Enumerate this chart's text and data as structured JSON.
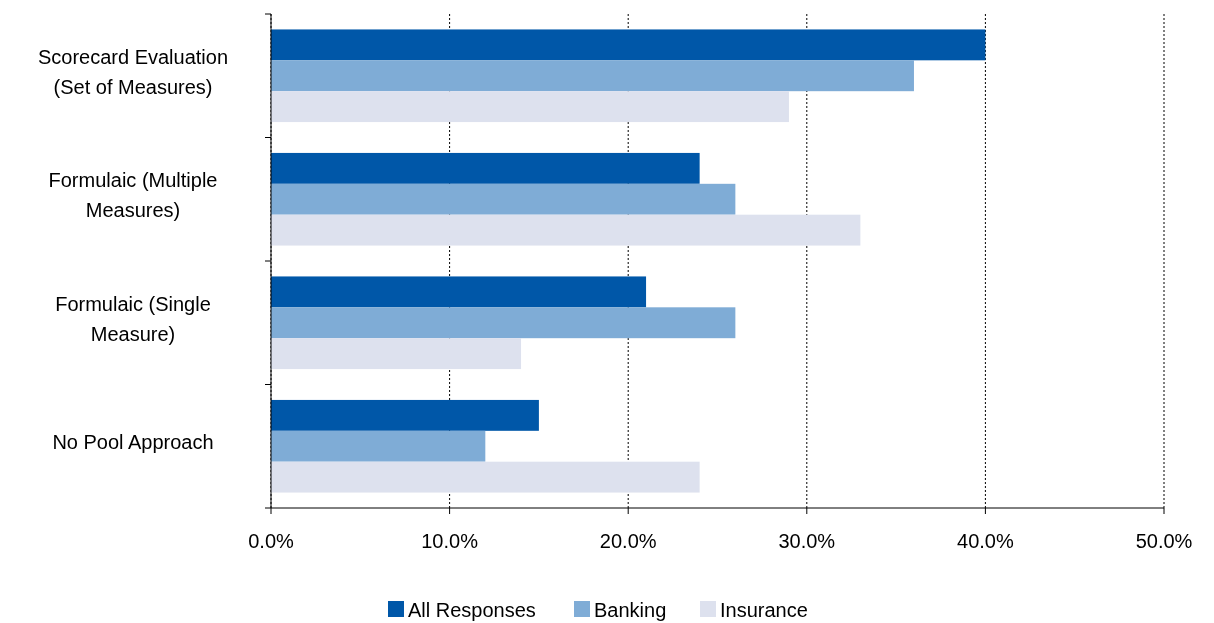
{
  "chart_data": {
    "type": "bar",
    "orientation": "horizontal",
    "categories": [
      "Scorecard Evaluation (Set of Measures)",
      "Formulaic (Multiple Measures)",
      "Formulaic (Single Measure)",
      "No Pool Approach"
    ],
    "series": [
      {
        "name": "All Responses",
        "color": "#0057a8",
        "values": [
          40,
          24,
          21,
          15
        ]
      },
      {
        "name": "Banking",
        "color": "#7facd6",
        "values": [
          36,
          26,
          26,
          12
        ]
      },
      {
        "name": "Insurance",
        "color": "#dde1ee",
        "values": [
          29,
          33,
          14,
          24
        ]
      }
    ],
    "xlim": [
      0,
      50
    ],
    "xticks": [
      {
        "value": 0,
        "label": "0.0%"
      },
      {
        "value": 10,
        "label": "10.0%"
      },
      {
        "value": 20,
        "label": "20.0%"
      },
      {
        "value": 30,
        "label": "30.0%"
      },
      {
        "value": 40,
        "label": "40.0%"
      },
      {
        "value": 50,
        "label": "50.0%"
      }
    ],
    "grid": "x",
    "legend": "bottom"
  }
}
